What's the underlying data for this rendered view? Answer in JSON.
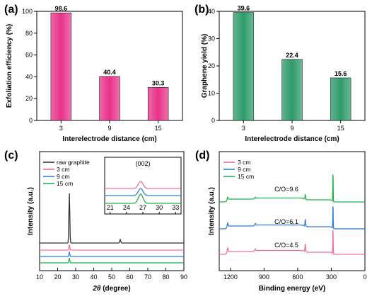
{
  "colors": {
    "panel_a_bar": "#e8338a",
    "panel_b_bar": "#2e9b6a",
    "black": "#333333",
    "pink": "#f06fa0",
    "blue": "#2f7fd6",
    "green": "#22b24c"
  },
  "chart_data": [
    {
      "panel": "(a)",
      "type": "bar",
      "categories": [
        "3",
        "9",
        "15"
      ],
      "values": [
        98.6,
        40.4,
        30.3
      ],
      "value_labels": [
        "98.6",
        "40.4",
        "30.3"
      ],
      "xlabel": "Interelectrode distance (cm)",
      "ylabel": "Exfoliation efficiency (%)",
      "ylim": [
        0,
        100
      ],
      "yticks": [
        "0",
        "20",
        "40",
        "60",
        "80",
        "100"
      ]
    },
    {
      "panel": "(b)",
      "type": "bar",
      "categories": [
        "3",
        "9",
        "15"
      ],
      "values": [
        39.6,
        22.4,
        15.6
      ],
      "value_labels": [
        "39.6",
        "22.4",
        "15.6"
      ],
      "xlabel": "Interelectrode distance (cm)",
      "ylabel": "Graphene yield (%)",
      "ylim": [
        0,
        40
      ],
      "yticks": [
        "0",
        "10",
        "20",
        "30",
        "40"
      ]
    },
    {
      "panel": "(c)",
      "type": "line",
      "xlabel_symbol": "2θ",
      "xlabel_unit": " (degree)",
      "ylabel": "Intensity (a.u.)",
      "xlim": [
        10,
        90
      ],
      "xticks": [
        "10",
        "20",
        "30",
        "40",
        "50",
        "60",
        "70",
        "80",
        "90"
      ],
      "legend": [
        "raw graphite",
        "3 cm",
        "9 cm",
        "15 cm"
      ],
      "legend_position": "top-left",
      "peaks": [
        26.5,
        54.7
      ],
      "inset": {
        "xlim": [
          20,
          34
        ],
        "xticks": [
          "21",
          "24",
          "27",
          "30",
          "33"
        ],
        "annotation": "(002)",
        "peak": 26.6
      }
    },
    {
      "panel": "(d)",
      "type": "line",
      "xlabel": "Binding energy (eV)",
      "ylabel": "Intensity (a.u.)",
      "xlim": [
        1300,
        0
      ],
      "xticks": [
        "1200",
        "900",
        "600",
        "300",
        "0"
      ],
      "legend": [
        "3 cm",
        "9 cm",
        "15 cm"
      ],
      "legend_position": "top-left",
      "annotations": [
        "C/O=9.6",
        "C/O=6.1",
        "C/O=4.5"
      ],
      "peaks": [
        1225,
        978,
        532,
        285
      ]
    }
  ]
}
